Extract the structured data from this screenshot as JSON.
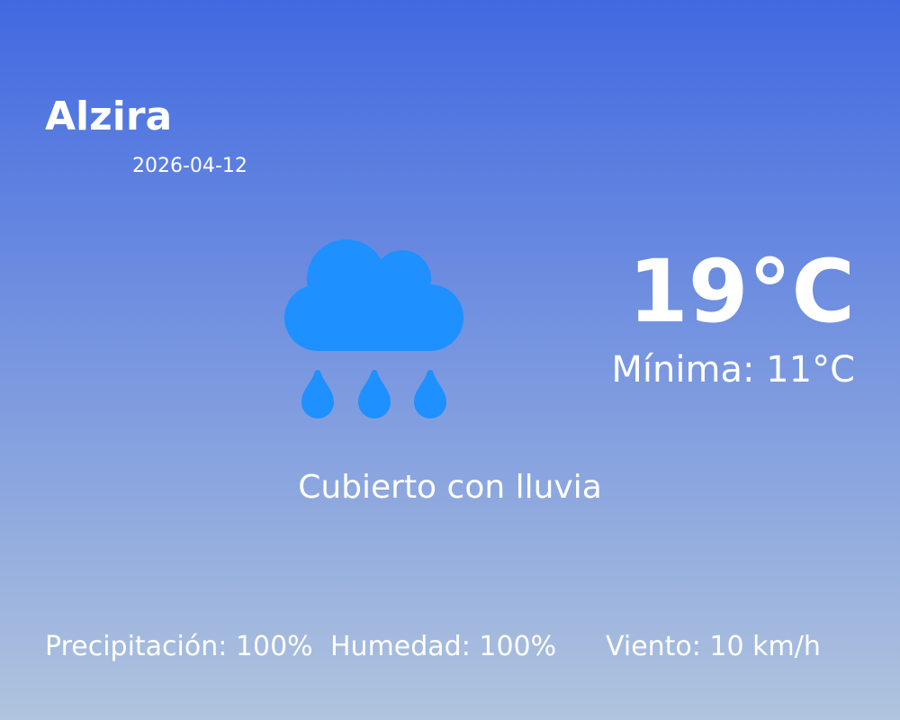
{
  "location": {
    "city": "Alzira",
    "date": "2026-04-12"
  },
  "current": {
    "temperature": "19°C",
    "minimum": "Mínima: 11°C",
    "description": "Cubierto con lluvia",
    "icon": "cloud-rain-icon",
    "icon_color": "#1E90FF"
  },
  "stats": {
    "precipitation": "Precipitación: 100%",
    "humidity": "Humedad: 100%",
    "wind": "Viento: 10 km/h"
  },
  "colors": {
    "background_top": "#4169E1",
    "background_bottom": "#B0C4DE",
    "text": "#FFFFFF"
  }
}
